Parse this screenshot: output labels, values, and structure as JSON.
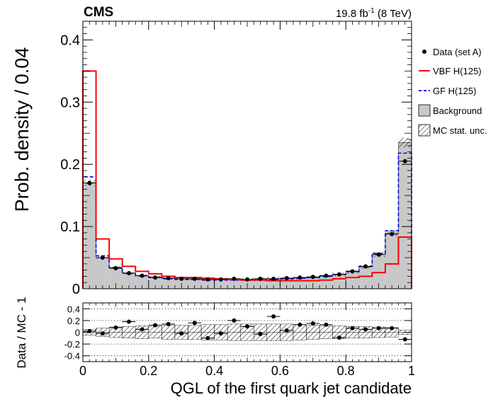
{
  "header": {
    "experiment": "CMS",
    "lumi_value": "19.8 fb",
    "lumi_exp": "-1",
    "lumi_energy": "(8 TeV)"
  },
  "legend": {
    "data": "Data (set A)",
    "vbf": "VBF H(125)",
    "gf": "GF H(125)",
    "background": "Background",
    "mcstat": "MC stat. unc."
  },
  "colors": {
    "vbf": "#ff0000",
    "gf": "#0000ff",
    "background_fill": "#c8c8c8",
    "data": "#000000"
  },
  "chart_data": [
    {
      "type": "histogram",
      "panel": "main",
      "xlabel": "QGL of the first quark jet candidate",
      "ylabel": "Prob. density / 0.04",
      "xlim": [
        0,
        1
      ],
      "ylim": [
        0,
        0.43
      ],
      "x_ticks": [
        "0",
        "0.2",
        "0.4",
        "0.6",
        "0.8",
        "1"
      ],
      "y_ticks": [
        "0",
        "0.1",
        "0.2",
        "0.3",
        "0.4"
      ],
      "bin_edges": [
        0,
        0.04,
        0.08,
        0.12,
        0.16,
        0.2,
        0.24,
        0.28,
        0.32,
        0.36,
        0.4,
        0.44,
        0.48,
        0.52,
        0.56,
        0.6,
        0.64,
        0.68,
        0.72,
        0.76,
        0.8,
        0.84,
        0.88,
        0.92,
        0.96,
        1.0
      ],
      "series": [
        {
          "name": "Background",
          "style": "filled",
          "values": [
            0.17,
            0.05,
            0.034,
            0.025,
            0.021,
            0.019,
            0.017,
            0.016,
            0.016,
            0.015,
            0.015,
            0.015,
            0.015,
            0.015,
            0.016,
            0.016,
            0.017,
            0.018,
            0.02,
            0.023,
            0.027,
            0.035,
            0.055,
            0.09,
            0.235
          ]
        },
        {
          "name": "VBF H(125)",
          "style": "red-line",
          "values": [
            0.35,
            0.08,
            0.048,
            0.036,
            0.028,
            0.024,
            0.02,
            0.018,
            0.018,
            0.017,
            0.016,
            0.015,
            0.014,
            0.014,
            0.013,
            0.013,
            0.013,
            0.013,
            0.014,
            0.016,
            0.018,
            0.02,
            0.026,
            0.04,
            0.083
          ]
        },
        {
          "name": "GF H(125)",
          "style": "blue-dashed",
          "values": [
            0.18,
            0.053,
            0.034,
            0.025,
            0.021,
            0.018,
            0.016,
            0.015,
            0.015,
            0.014,
            0.014,
            0.014,
            0.014,
            0.014,
            0.015,
            0.016,
            0.017,
            0.018,
            0.02,
            0.023,
            0.028,
            0.036,
            0.057,
            0.093,
            0.218
          ]
        },
        {
          "name": "Data (set A)",
          "style": "points",
          "values": [
            0.17,
            0.05,
            0.033,
            0.025,
            0.021,
            0.018,
            0.017,
            0.016,
            0.016,
            0.015,
            0.015,
            0.016,
            0.015,
            0.016,
            0.016,
            0.017,
            0.018,
            0.019,
            0.021,
            0.023,
            0.028,
            0.036,
            0.055,
            0.088,
            0.205
          ]
        }
      ],
      "mc_stat_unc": [
        0.005,
        0.002,
        0.002,
        0.002,
        0.002,
        0.002,
        0.002,
        0.002,
        0.002,
        0.002,
        0.002,
        0.002,
        0.003,
        0.003,
        0.003,
        0.003,
        0.002,
        0.002,
        0.002,
        0.003,
        0.003,
        0.003,
        0.004,
        0.005,
        0.008
      ]
    },
    {
      "type": "scatter",
      "panel": "ratio",
      "ylabel": "Data / MC - 1",
      "xlim": [
        0,
        1
      ],
      "ylim": [
        -0.5,
        0.5
      ],
      "y_ticks": [
        "-0.4",
        "-0.2",
        "0",
        "0.2",
        "0.4"
      ],
      "x": [
        0.02,
        0.06,
        0.1,
        0.14,
        0.18,
        0.22,
        0.26,
        0.3,
        0.34,
        0.38,
        0.42,
        0.46,
        0.5,
        0.54,
        0.58,
        0.62,
        0.66,
        0.7,
        0.74,
        0.78,
        0.82,
        0.86,
        0.9,
        0.94,
        0.98
      ],
      "values": [
        0.02,
        -0.02,
        0.08,
        0.18,
        0.05,
        0.12,
        0.14,
        -0.02,
        0.16,
        -0.1,
        -0.02,
        0.2,
        0.1,
        -0.03,
        0.27,
        0.03,
        0.13,
        0.15,
        0.13,
        -0.09,
        0.07,
        0.05,
        0.07,
        0.07,
        -0.12
      ],
      "band_halfwidth": [
        0.05,
        0.07,
        0.09,
        0.1,
        0.11,
        0.1,
        0.12,
        0.12,
        0.12,
        0.13,
        0.13,
        0.14,
        0.14,
        0.14,
        0.14,
        0.14,
        0.13,
        0.12,
        0.11,
        0.11,
        0.1,
        0.1,
        0.09,
        0.08,
        0.04
      ]
    }
  ]
}
